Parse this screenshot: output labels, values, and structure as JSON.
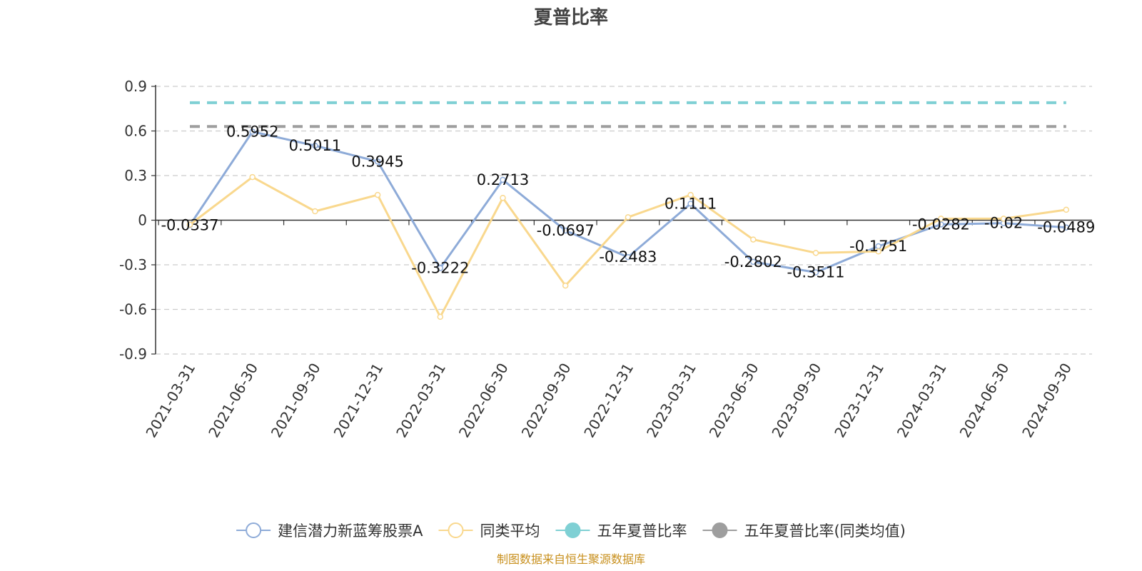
{
  "chart_data": {
    "type": "line",
    "title": "夏普比率",
    "xlabel": "",
    "ylabel": "",
    "categories": [
      "2021-03-31",
      "2021-06-30",
      "2021-09-30",
      "2021-12-31",
      "2022-03-31",
      "2022-06-30",
      "2022-09-30",
      "2022-12-31",
      "2023-03-31",
      "2023-06-30",
      "2023-09-30",
      "2023-12-31",
      "2024-03-31",
      "2024-06-30",
      "2024-09-30"
    ],
    "ylim": [
      -0.9,
      0.9
    ],
    "yticks": [
      "0.9",
      "0.6",
      "0.3",
      "0",
      "-0.3",
      "-0.6",
      "-0.9"
    ],
    "grid": true,
    "legend_position": "bottom",
    "series": [
      {
        "name": "建信潜力新蓝筹股票A",
        "color": "#8eabd8",
        "marker": "hollow-circle",
        "values": [
          -0.0337,
          0.5952,
          0.5011,
          0.3945,
          -0.3222,
          0.2713,
          -0.0697,
          -0.2483,
          0.1111,
          -0.2802,
          -0.3511,
          -0.1751,
          -0.0282,
          -0.02,
          -0.0489
        ],
        "labels": [
          "-0.0337",
          "0.5952",
          "0.5011",
          "0.3945",
          "-0.3222",
          "0.2713",
          "-0.0697",
          "-0.2483",
          "0.1111",
          "-0.2802",
          "-0.3511",
          "-0.1751",
          "-0.0282",
          "-0.02",
          "-0.0489"
        ]
      },
      {
        "name": "同类平均",
        "color": "#f9d88e",
        "marker": "hollow-circle",
        "values": [
          -0.03,
          0.29,
          0.06,
          0.17,
          -0.65,
          0.15,
          -0.44,
          0.02,
          0.17,
          -0.13,
          -0.22,
          -0.21,
          0.01,
          0.01,
          0.07
        ]
      },
      {
        "name": "五年夏普比率",
        "color": "#7fd0d4",
        "marker": "filled-circle",
        "line_style": "dashed",
        "values": [
          0.79,
          0.79,
          0.79,
          0.79,
          0.79,
          0.79,
          0.79,
          0.79,
          0.79,
          0.79,
          0.79,
          0.79,
          0.79,
          0.79,
          0.79
        ]
      },
      {
        "name": "五年夏普比率(同类均值)",
        "color": "#9e9e9e",
        "marker": "filled-circle",
        "line_style": "dashed",
        "values": [
          0.63,
          0.63,
          0.63,
          0.63,
          0.63,
          0.63,
          0.63,
          0.63,
          0.63,
          0.63,
          0.63,
          0.63,
          0.63,
          0.63,
          0.63
        ]
      }
    ]
  },
  "source": "制图数据来自恒生聚源数据库"
}
